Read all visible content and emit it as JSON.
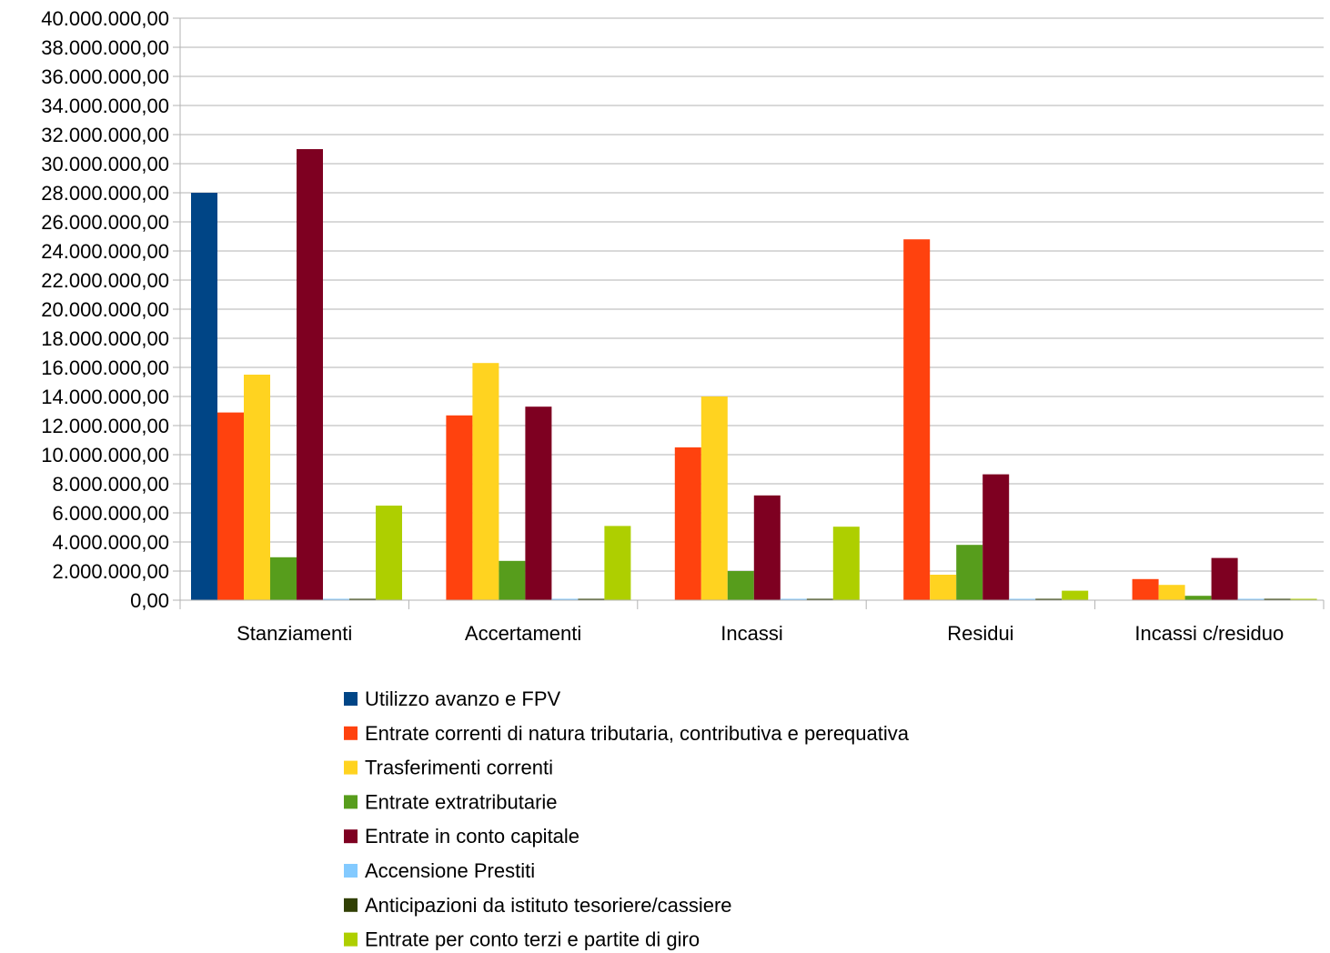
{
  "chart_data": {
    "type": "bar",
    "title": "",
    "xlabel": "",
    "ylabel": "",
    "categories": [
      "Stanziamenti",
      "Accertamenti",
      "Incassi",
      "Residui",
      "Incassi c/residuo"
    ],
    "ylim": [
      0,
      40000000
    ],
    "ytick_step": 2000000,
    "ytick_labels": [
      "0,00",
      "2.000.000,00",
      "4.000.000,00",
      "6.000.000,00",
      "8.000.000,00",
      "10.000.000,00",
      "12.000.000,00",
      "14.000.000,00",
      "16.000.000,00",
      "18.000.000,00",
      "20.000.000,00",
      "22.000.000,00",
      "24.000.000,00",
      "26.000.000,00",
      "28.000.000,00",
      "30.000.000,00",
      "32.000.000,00",
      "34.000.000,00",
      "36.000.000,00",
      "38.000.000,00",
      "40.000.000,00"
    ],
    "grid": true,
    "legend_position": "bottom",
    "series": [
      {
        "name": "Utilizzo avanzo e FPV",
        "color": "#004586",
        "values": [
          28000000,
          0,
          0,
          0,
          0
        ]
      },
      {
        "name": "Entrate correnti di natura tributaria, contributiva e perequativa",
        "color": "#ff420e",
        "values": [
          12900000,
          12700000,
          10500000,
          24800000,
          1450000
        ]
      },
      {
        "name": "Trasferimenti correnti",
        "color": "#ffd320",
        "values": [
          15500000,
          16300000,
          14000000,
          1750000,
          1050000
        ]
      },
      {
        "name": "Entrate extratributarie",
        "color": "#579d1c",
        "values": [
          2950000,
          2700000,
          2000000,
          3800000,
          300000
        ]
      },
      {
        "name": "Entrate in conto capitale",
        "color": "#7e0021",
        "values": [
          31000000,
          13300000,
          7200000,
          8650000,
          2900000
        ]
      },
      {
        "name": "Accensione Prestiti",
        "color": "#83caff",
        "values": [
          40000,
          40000,
          40000,
          40000,
          40000
        ]
      },
      {
        "name": "Anticipazioni da istituto tesoriere/cassiere",
        "color": "#314004",
        "values": [
          40000,
          40000,
          40000,
          40000,
          40000
        ]
      },
      {
        "name": "Entrate per conto terzi e partite di giro",
        "color": "#aecf00",
        "values": [
          6500000,
          5100000,
          5050000,
          650000,
          60000
        ]
      }
    ]
  }
}
